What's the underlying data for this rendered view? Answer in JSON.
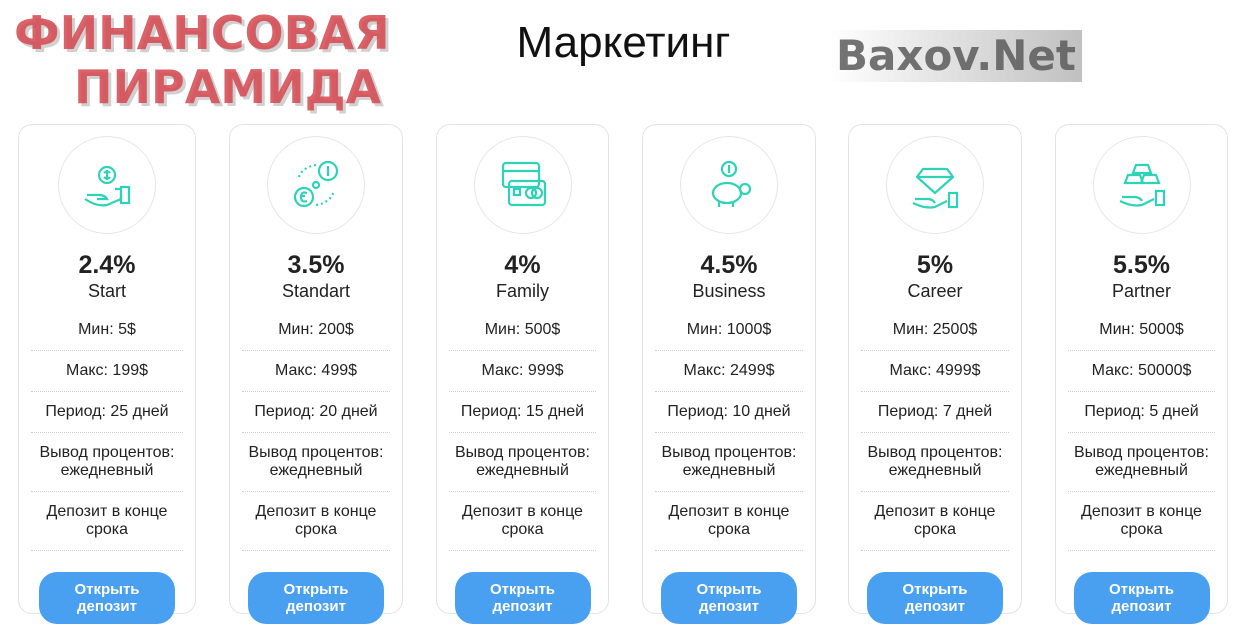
{
  "title": "Маркетинг",
  "accent_color": "#2ed3b7",
  "button_color": "#4aa0f0",
  "plans": [
    {
      "icon": "hand-coin-icon",
      "percent": "2.4%",
      "name": "Start",
      "min": "Мин: 5$",
      "max": "Макс: 199$",
      "period": "Период: 25 дней",
      "payout": "Вывод процентов: ежедневный",
      "deposit": "Депозит в конце срока",
      "button": "Открыть депозит"
    },
    {
      "icon": "currency-exchange-icon",
      "percent": "3.5%",
      "name": "Standart",
      "min": "Мин: 200$",
      "max": "Макс: 499$",
      "period": "Период: 20 дней",
      "payout": "Вывод процентов: ежедневный",
      "deposit": "Депозит в конце срока",
      "button": "Открыть депозит"
    },
    {
      "icon": "bank-cards-icon",
      "percent": "4%",
      "name": "Family",
      "min": "Мин: 500$",
      "max": "Макс: 999$",
      "period": "Период: 15 дней",
      "payout": "Вывод процентов: ежедневный",
      "deposit": "Депозит в конце срока",
      "button": "Открыть депозит"
    },
    {
      "icon": "piggy-bank-icon",
      "percent": "4.5%",
      "name": "Business",
      "min": "Мин: 1000$",
      "max": "Макс: 2499$",
      "period": "Период: 10 дней",
      "payout": "Вывод процентов: ежедневный",
      "deposit": "Депозит в конце срока",
      "button": "Открыть депозит"
    },
    {
      "icon": "diamond-hand-icon",
      "percent": "5%",
      "name": "Career",
      "min": "Мин: 2500$",
      "max": "Макс: 4999$",
      "period": "Период: 7 дней",
      "payout": "Вывод процентов: ежедневный",
      "deposit": "Депозит в конце срока",
      "button": "Открыть депозит"
    },
    {
      "icon": "gold-bars-hand-icon",
      "percent": "5.5%",
      "name": "Partner",
      "min": "Мин: 5000$",
      "max": "Макс: 50000$",
      "period": "Период: 5 дней",
      "payout": "Вывод процентов: ежедневный",
      "deposit": "Депозит в конце срока",
      "button": "Открыть депозит"
    }
  ],
  "stamp": {
    "line1": "ФИНАНСОВАЯ",
    "line2": "ПИРАМИДА"
  },
  "watermark": "Baxov.Net"
}
